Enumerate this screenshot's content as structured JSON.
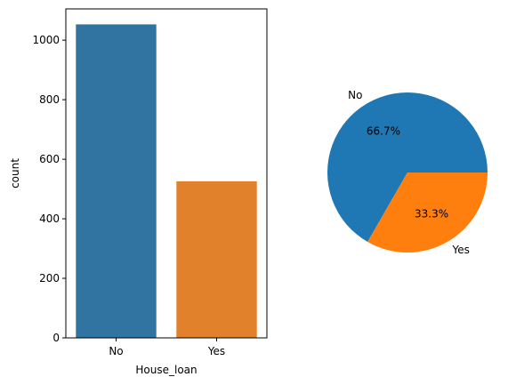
{
  "chart_data": [
    {
      "type": "bar",
      "categories": [
        "No",
        "Yes"
      ],
      "values": [
        1053,
        526
      ],
      "colors": [
        "#3274a1",
        "#e1812c"
      ],
      "xlabel": "House_loan",
      "ylabel": "count",
      "ylim": [
        0,
        1105
      ],
      "yticks": [
        0,
        200,
        400,
        600,
        800,
        1000
      ],
      "grid": false
    },
    {
      "type": "pie",
      "labels": [
        "No",
        "Yes"
      ],
      "values": [
        66.7,
        33.3
      ],
      "percent_labels": [
        "66.7%",
        "33.3%"
      ],
      "colors": [
        "#1f77b4",
        "#ff7f0e"
      ]
    }
  ]
}
